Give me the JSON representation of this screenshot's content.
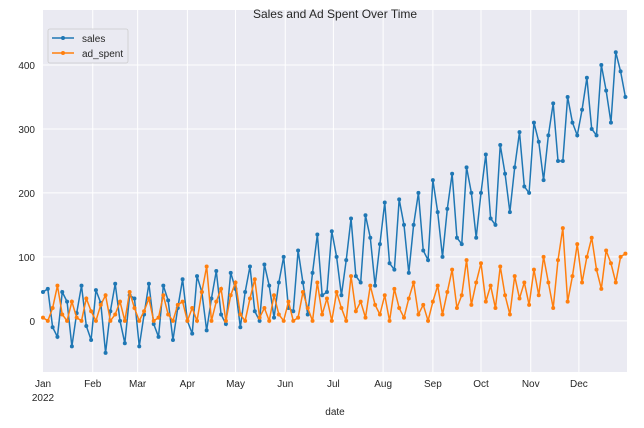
{
  "chart_data": {
    "type": "line",
    "title": "Sales and Ad Spent Over Time",
    "xlabel": "date",
    "ylabel": "",
    "year_label": "2022",
    "x_tick_labels": [
      "Jan",
      "Feb",
      "Mar",
      "Apr",
      "May",
      "Jun",
      "Jul",
      "Aug",
      "Sep",
      "Oct",
      "Nov",
      "Dec"
    ],
    "month_start_days": [
      0,
      31,
      59,
      90,
      120,
      151,
      181,
      212,
      243,
      273,
      304,
      334
    ],
    "xlim_days": [
      0,
      364
    ],
    "x_sample_step_days": 3,
    "y_ticks": [
      0,
      100,
      200,
      300,
      400
    ],
    "ylim": [
      -80,
      486
    ],
    "grid": true,
    "legend_position": "top-left",
    "series": [
      {
        "name": "sales",
        "color": "#1f77b4",
        "values": [
          45,
          50,
          -10,
          -25,
          45,
          30,
          -40,
          12,
          55,
          -8,
          -30,
          48,
          28,
          -50,
          15,
          58,
          0,
          -35,
          40,
          35,
          -40,
          10,
          58,
          -5,
          -25,
          55,
          32,
          -30,
          20,
          65,
          0,
          -20,
          70,
          45,
          -15,
          35,
          78,
          10,
          -5,
          75,
          50,
          -10,
          45,
          85,
          15,
          0,
          88,
          55,
          5,
          60,
          100,
          20,
          15,
          110,
          60,
          10,
          75,
          135,
          40,
          45,
          140,
          100,
          40,
          95,
          160,
          70,
          60,
          165,
          130,
          55,
          120,
          185,
          90,
          80,
          190,
          150,
          75,
          150,
          200,
          110,
          95,
          220,
          170,
          100,
          175,
          230,
          130,
          120,
          240,
          200,
          130,
          200,
          260,
          160,
          150,
          275,
          230,
          170,
          240,
          295,
          210,
          200,
          310,
          280,
          220,
          290,
          340,
          250,
          250,
          350,
          310,
          290,
          330,
          380,
          300,
          290,
          400,
          360,
          310,
          420,
          390,
          350
        ]
      },
      {
        "name": "ad_spent",
        "color": "#ff7f0e",
        "values": [
          5,
          0,
          20,
          55,
          10,
          0,
          30,
          5,
          0,
          35,
          15,
          0,
          25,
          40,
          0,
          10,
          30,
          0,
          45,
          20,
          0,
          15,
          35,
          0,
          5,
          40,
          10,
          0,
          25,
          30,
          0,
          20,
          0,
          45,
          85,
          0,
          30,
          50,
          0,
          40,
          60,
          10,
          0,
          35,
          65,
          5,
          20,
          0,
          40,
          10,
          0,
          30,
          0,
          5,
          45,
          20,
          0,
          60,
          10,
          35,
          0,
          45,
          20,
          0,
          70,
          15,
          30,
          5,
          55,
          25,
          10,
          40,
          0,
          50,
          20,
          5,
          35,
          60,
          10,
          25,
          0,
          30,
          55,
          10,
          45,
          80,
          20,
          40,
          95,
          25,
          60,
          90,
          30,
          55,
          20,
          85,
          40,
          10,
          70,
          35,
          60,
          25,
          80,
          40,
          100,
          60,
          20,
          95,
          145,
          30,
          70,
          120,
          60,
          100,
          130,
          80,
          50,
          110,
          90,
          60,
          100,
          105
        ]
      }
    ]
  }
}
